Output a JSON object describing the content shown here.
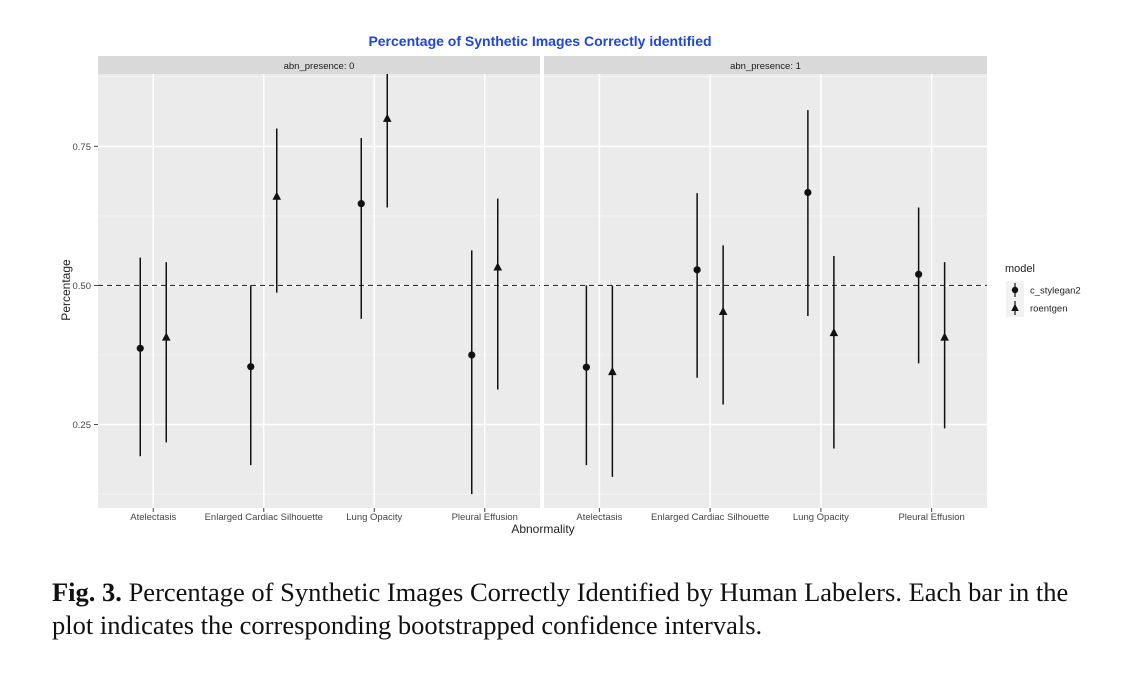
{
  "chart_data": {
    "type": "scatter",
    "title": "Percentage of Synthetic Images Correctly identified",
    "xlabel": "Abnormality",
    "ylabel": "Percentage",
    "ylim": [
      0.1,
      0.88
    ],
    "yticks": [
      0.25,
      0.5,
      0.75
    ],
    "ytick_labels": [
      "0.25",
      "0.50",
      "0.75"
    ],
    "reference_line": 0.5,
    "grid": true,
    "legend_position": "right",
    "legend_title": "model",
    "categories": [
      "Atelectasis",
      "Enlarged Cardiac Silhouette",
      "Lung Opacity",
      "Pleural Effusion"
    ],
    "series": [
      {
        "name": "c_stylegan2",
        "marker": "circle"
      },
      {
        "name": "roentgen",
        "marker": "triangle"
      }
    ],
    "panels": [
      {
        "label": "abn_presence: 0",
        "data": {
          "c_stylegan2": [
            {
              "value": 0.387,
              "low": 0.193,
              "high": 0.55
            },
            {
              "value": 0.354,
              "low": 0.177,
              "high": 0.5
            },
            {
              "value": 0.647,
              "low": 0.44,
              "high": 0.765
            },
            {
              "value": 0.375,
              "low": 0.125,
              "high": 0.563
            }
          ],
          "roentgen": [
            {
              "value": 0.407,
              "low": 0.218,
              "high": 0.542
            },
            {
              "value": 0.66,
              "low": 0.487,
              "high": 0.782
            },
            {
              "value": 0.8,
              "low": 0.64,
              "high": 0.88
            },
            {
              "value": 0.533,
              "low": 0.313,
              "high": 0.656
            }
          ]
        }
      },
      {
        "label": "abn_presence: 1",
        "data": {
          "c_stylegan2": [
            {
              "value": 0.353,
              "low": 0.177,
              "high": 0.5
            },
            {
              "value": 0.528,
              "low": 0.334,
              "high": 0.666
            },
            {
              "value": 0.667,
              "low": 0.445,
              "high": 0.815
            },
            {
              "value": 0.52,
              "low": 0.36,
              "high": 0.64
            }
          ],
          "roentgen": [
            {
              "value": 0.345,
              "low": 0.156,
              "high": 0.5
            },
            {
              "value": 0.453,
              "low": 0.286,
              "high": 0.572
            },
            {
              "value": 0.415,
              "low": 0.207,
              "high": 0.553
            },
            {
              "value": 0.407,
              "low": 0.243,
              "high": 0.542
            }
          ]
        }
      }
    ]
  },
  "caption": {
    "label": "Fig. 3.",
    "text": " Percentage of Synthetic Images Correctly Identified by Human Labelers. Each bar in the plot indicates the corresponding bootstrapped confidence intervals."
  }
}
